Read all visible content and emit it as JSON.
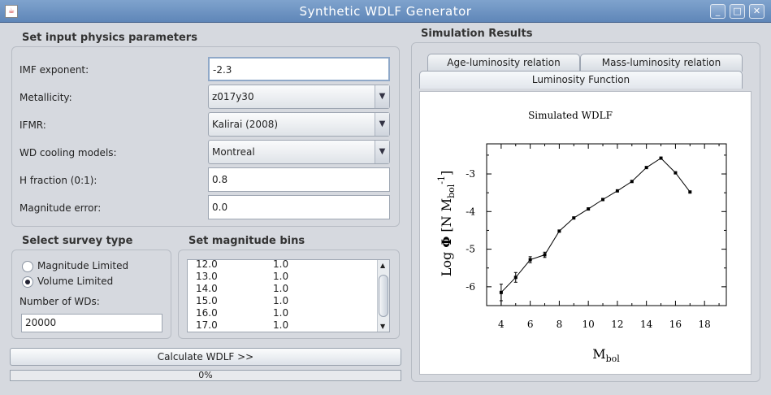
{
  "window": {
    "title": "Synthetic WDLF Generator",
    "buttons": [
      "_",
      "□",
      "✕"
    ]
  },
  "physics": {
    "title": "Set input physics parameters",
    "imf_label": "IMF exponent:",
    "imf_value": "-2.3",
    "metallicity_label": "Metallicity:",
    "metallicity_value": "z017y30",
    "ifmr_label": "IFMR:",
    "ifmr_value": "Kalirai (2008)",
    "cooling_label": "WD cooling models:",
    "cooling_value": "Montreal",
    "hfrac_label": "H fraction (0:1):",
    "hfrac_value": "0.8",
    "magerr_label": "Magnitude error:",
    "magerr_value": "0.0"
  },
  "survey": {
    "title": "Select survey type",
    "option1": "Magnitude Limited",
    "option2": "Volume Limited",
    "selected": "Volume Limited",
    "nwd_label": "Number of WDs:",
    "nwd_value": "20000"
  },
  "bins": {
    "title": "Set magnitude bins",
    "rows": [
      [
        "12.0",
        "1.0"
      ],
      [
        "13.0",
        "1.0"
      ],
      [
        "14.0",
        "1.0"
      ],
      [
        "15.0",
        "1.0"
      ],
      [
        "16.0",
        "1.0"
      ],
      [
        "17.0",
        "1.0"
      ]
    ]
  },
  "actions": {
    "calculate": "Calculate WDLF >>",
    "progress": "0%",
    "progress_value": 0
  },
  "results": {
    "title": "Simulation Results",
    "tabs": [
      "Age-luminosity relation",
      "Mass-luminosity relation",
      "Luminosity Function"
    ],
    "active_tab": "Luminosity Function"
  },
  "chart_data": {
    "type": "line",
    "title": "Simulated WDLF",
    "xlabel": "Mbol",
    "ylabel": "Log Φ [N Mbol⁻¹]",
    "xlim": [
      3,
      19.5
    ],
    "ylim": [
      -6.5,
      -2.2
    ],
    "xticks": [
      4,
      6,
      8,
      10,
      12,
      14,
      16,
      18
    ],
    "yticks": [
      -6,
      -5,
      -4,
      -3
    ],
    "grid": false,
    "series": [
      {
        "x": [
          4,
          5,
          6,
          7,
          8,
          9,
          10,
          11,
          12,
          13,
          14,
          15,
          16,
          17
        ],
        "y": [
          -6.15,
          -5.75,
          -5.28,
          -5.15,
          -4.52,
          -4.17,
          -3.93,
          -3.68,
          -3.45,
          -3.2,
          -2.83,
          -2.58,
          -2.97,
          -3.48
        ],
        "err": [
          0.22,
          0.13,
          0.08,
          0.07,
          0,
          0,
          0,
          0,
          0,
          0,
          0,
          0,
          0,
          0
        ]
      }
    ]
  }
}
